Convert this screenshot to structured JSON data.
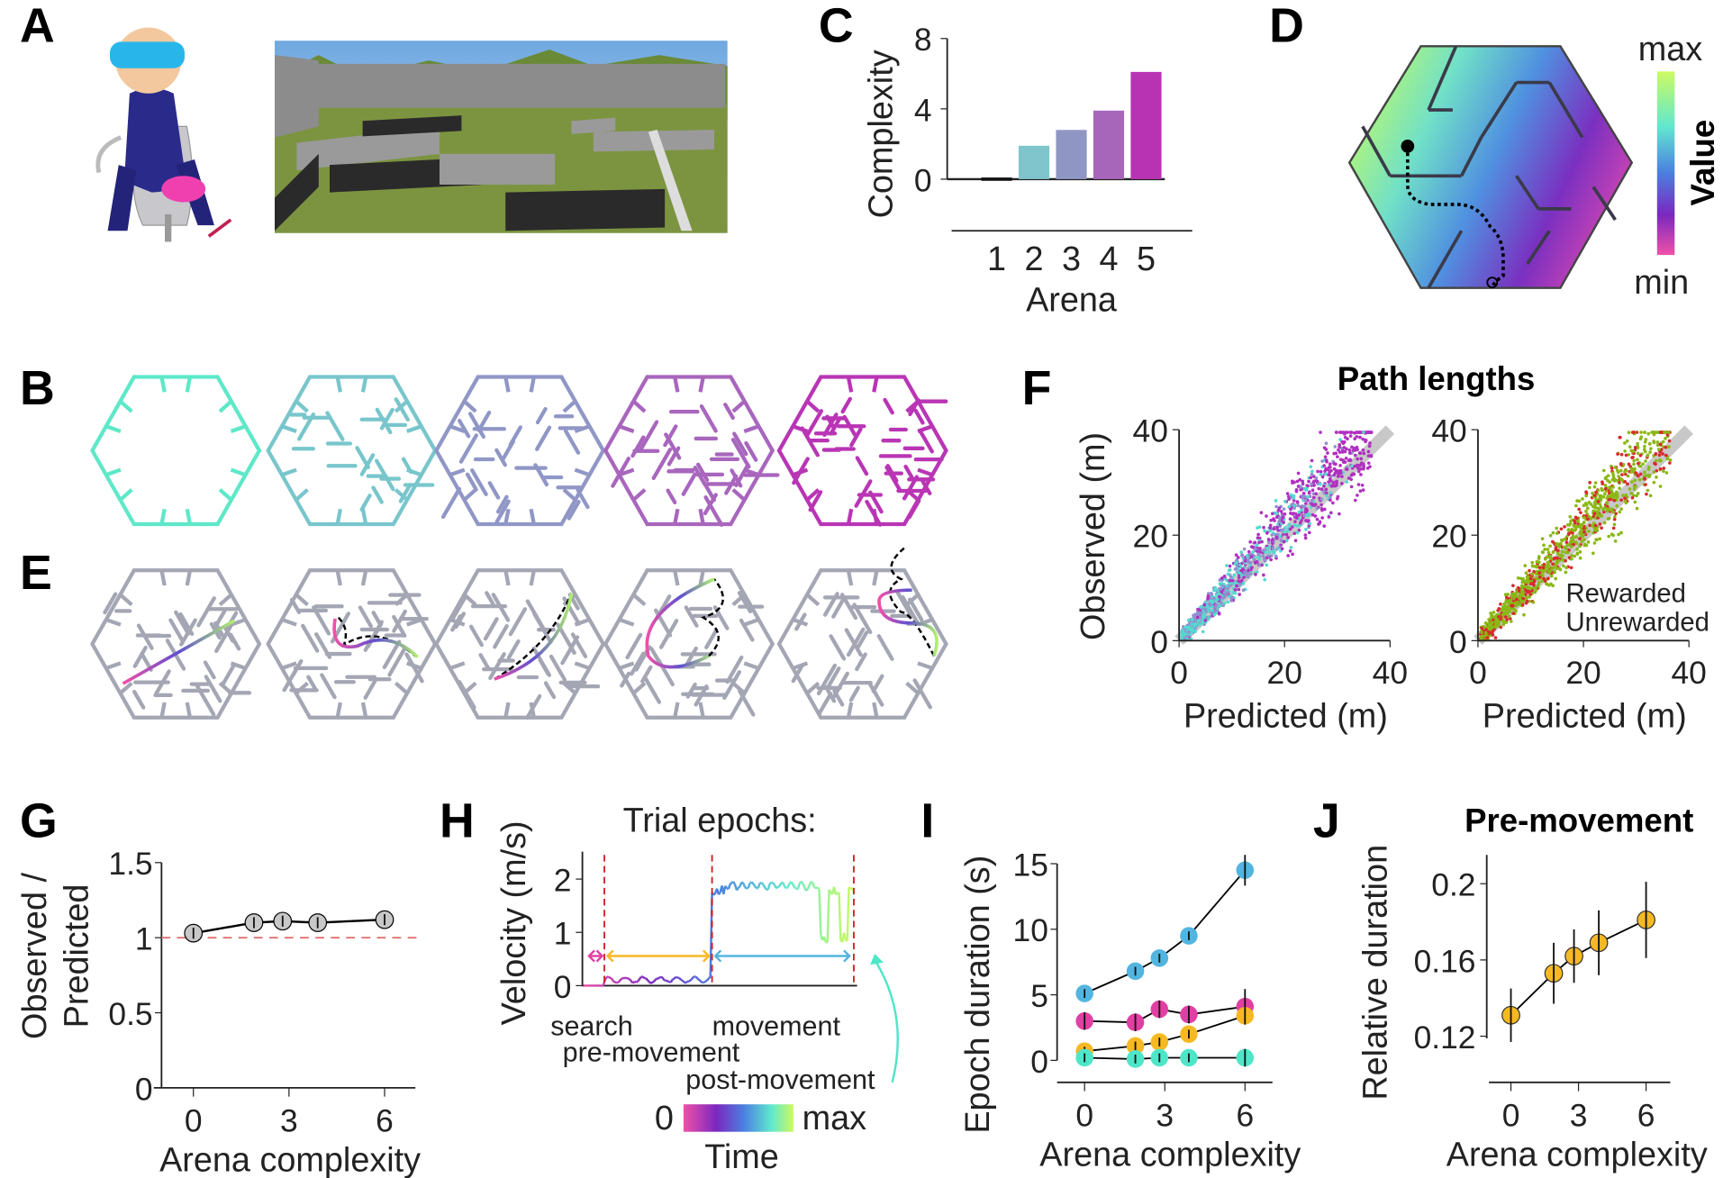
{
  "panel_labels": {
    "A": "A",
    "B": "B",
    "C": "C",
    "D": "D",
    "E": "E",
    "F": "F",
    "G": "G",
    "H": "H",
    "I": "I",
    "J": "J"
  },
  "colors": {
    "arenas": [
      "#5ee8c8",
      "#78c6cc",
      "#9097c6",
      "#a866bd",
      "#b935b5"
    ],
    "maze_gray": "#a4a6b4",
    "reference_line": "#e07070",
    "epoch_boundary": "#cc2020"
  },
  "chart_data": [
    {
      "panel": "C",
      "type": "bar",
      "categories": [
        "1",
        "2",
        "3",
        "4",
        "5"
      ],
      "values": [
        0,
        1.9,
        2.8,
        3.9,
        6.1
      ],
      "ylim": [
        0,
        8
      ],
      "yticks": [
        "0",
        "4",
        "8"
      ],
      "ylabel": "Complexity",
      "xlabel": "Arena",
      "bar_colors": [
        "#111111",
        "#7fc5cb",
        "#9096c3",
        "#a866bb",
        "#b833b3"
      ]
    },
    {
      "panel": "D",
      "type": "heatmap",
      "colorbar_label": "Value",
      "colorbar_max": "max",
      "colorbar_min": "min",
      "colormap": [
        "#cdfa60",
        "#60e8d0",
        "#4c80e0",
        "#7a28c0",
        "#f050a8"
      ]
    },
    {
      "panel": "F",
      "type": "scatter",
      "title": "Path lengths",
      "subplots": [
        {
          "xlabel": "Predicted (m)",
          "ylabel": "Observed (m)",
          "xlim": [
            0,
            40
          ],
          "ylim": [
            0,
            40
          ],
          "ticks": [
            "0",
            "20",
            "40"
          ],
          "identity_line": true
        },
        {
          "xlabel": "Predicted (m)",
          "xlim": [
            0,
            40
          ],
          "ylim": [
            0,
            40
          ],
          "ticks": [
            "0",
            "20",
            "40"
          ],
          "identity_line": true,
          "series": [
            {
              "name": "Rewarded",
              "color": "#8ab817"
            },
            {
              "name": "Unrewarded",
              "color": "#d82a2e"
            }
          ]
        }
      ]
    },
    {
      "panel": "G",
      "type": "line",
      "x": [
        0,
        1.9,
        2.8,
        3.9,
        6
      ],
      "y": [
        1.03,
        1.1,
        1.11,
        1.1,
        1.12
      ],
      "ylim": [
        0,
        1.5
      ],
      "yticks": [
        "0",
        "0.5",
        "1",
        "1.5"
      ],
      "xticks": [
        "0",
        "3",
        "6"
      ],
      "reference_line": 1,
      "ylabel": [
        "Observed /",
        "Predicted"
      ],
      "xlabel": "Arena complexity"
    },
    {
      "panel": "H",
      "type": "line",
      "title": "Trial epochs:",
      "ylabel": "Velocity (m/s)",
      "ylim": [
        0,
        2.5
      ],
      "yticks": [
        "0",
        "1",
        "2"
      ],
      "epochs": [
        {
          "name": "search",
          "color": "#e23fa3"
        },
        {
          "name": "pre-movement",
          "color": "#f6b923"
        },
        {
          "name": "movement",
          "color": "#52b5df"
        },
        {
          "name": "post-movement",
          "color": "#4ee6c8"
        }
      ],
      "colorbar": {
        "min": "0",
        "max": "max",
        "label": "Time"
      }
    },
    {
      "panel": "I",
      "type": "line",
      "x": [
        0,
        1.9,
        2.8,
        3.9,
        6
      ],
      "ylim": [
        0,
        15
      ],
      "yticks": [
        "0",
        "5",
        "10",
        "15"
      ],
      "xticks": [
        "0",
        "3",
        "6"
      ],
      "ylabel": "Epoch duration (s)",
      "xlabel": "Arena complexity",
      "series": [
        {
          "color": "#52b5df",
          "values": [
            5.1,
            6.8,
            7.8,
            9.5,
            14.5
          ]
        },
        {
          "color": "#e23fa3",
          "values": [
            3.0,
            2.9,
            3.9,
            3.5,
            4.1
          ]
        },
        {
          "color": "#f6b923",
          "values": [
            0.7,
            1.1,
            1.4,
            2.0,
            3.4
          ]
        },
        {
          "color": "#4ee6c8",
          "values": [
            0.2,
            0.1,
            0.2,
            0.2,
            0.2
          ]
        }
      ]
    },
    {
      "panel": "J",
      "type": "line",
      "title": "Pre-movement",
      "x": [
        0,
        1.9,
        2.8,
        3.9,
        6
      ],
      "y": [
        0.131,
        0.153,
        0.162,
        0.169,
        0.181
      ],
      "err": [
        0.014,
        0.016,
        0.014,
        0.017,
        0.02
      ],
      "ylim": [
        0.115,
        0.22
      ],
      "yticks": [
        "0.12",
        "0.16",
        "0.2"
      ],
      "xticks": [
        "0",
        "3",
        "6"
      ],
      "ylabel": "Relative duration",
      "xlabel": "Arena complexity",
      "color": "#f6b923"
    }
  ]
}
